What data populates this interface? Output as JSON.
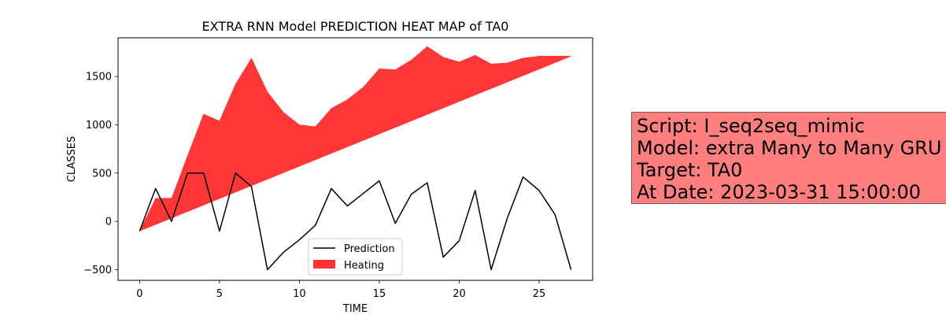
{
  "chart_data": {
    "type": "line",
    "title": "EXTRA RNN Model PREDICTION HEAT MAP of TA0",
    "xlabel": "TIME",
    "ylabel": "CLASSES",
    "xlim": [
      -1.35,
      28.35
    ],
    "ylim": [
      -610,
      1900
    ],
    "xticks": [
      0,
      5,
      10,
      15,
      20,
      25
    ],
    "yticks": [
      -500,
      0,
      500,
      1000,
      1500
    ],
    "grid": false,
    "legend_position": "lower-center",
    "x": [
      0,
      1,
      2,
      3,
      4,
      5,
      6,
      7,
      8,
      9,
      10,
      11,
      12,
      13,
      14,
      15,
      16,
      17,
      18,
      19,
      20,
      21,
      22,
      23,
      24,
      25,
      26,
      27
    ],
    "series": [
      {
        "name": "Prediction",
        "kind": "line",
        "color": "#000000",
        "values": [
          -100,
          340,
          0,
          500,
          500,
          -100,
          500,
          360,
          -500,
          -320,
          -190,
          -40,
          340,
          160,
          290,
          420,
          -20,
          280,
          400,
          -370,
          -200,
          320,
          -500,
          30,
          460,
          320,
          70,
          -500
        ]
      },
      {
        "name": "Heating",
        "kind": "fill_between",
        "color": "#ff3333",
        "upper": [
          -100,
          240,
          240,
          680,
          1110,
          1040,
          1420,
          1690,
          1340,
          1130,
          1000,
          980,
          1170,
          1260,
          1390,
          1580,
          1570,
          1670,
          1810,
          1700,
          1650,
          1720,
          1630,
          1640,
          1690,
          1710,
          1710,
          1710
        ],
        "lower": [
          -100,
          -33,
          34,
          101,
          168,
          235,
          302,
          369,
          436,
          503,
          570,
          637,
          704,
          771,
          838,
          905,
          972,
          1039,
          1106,
          1173,
          1240,
          1307,
          1374,
          1441,
          1508,
          1575,
          1642,
          1710
        ]
      }
    ]
  },
  "info_box": {
    "lines": [
      "Script: I_seq2seq_mimic",
      "Model: extra Many to Many GRU",
      "Target: TA0",
      "At Date: 2023-03-31 15:00:00"
    ],
    "background": "#ff7f7f"
  }
}
